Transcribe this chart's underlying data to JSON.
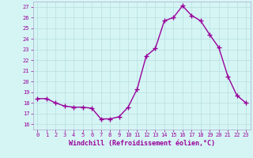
{
  "x": [
    0,
    1,
    2,
    3,
    4,
    5,
    6,
    7,
    8,
    9,
    10,
    11,
    12,
    13,
    14,
    15,
    16,
    17,
    18,
    19,
    20,
    21,
    22,
    23
  ],
  "y": [
    18.4,
    18.4,
    18.0,
    17.7,
    17.6,
    17.6,
    17.5,
    16.5,
    16.5,
    16.7,
    17.6,
    19.3,
    22.4,
    23.1,
    25.7,
    26.0,
    27.1,
    26.2,
    25.7,
    24.4,
    23.2,
    20.5,
    18.7,
    18.0
  ],
  "line_color": "#990099",
  "marker": "+",
  "markersize": 4,
  "linewidth": 1.0,
  "xlabel": "Windchill (Refroidissement éolien,°C)",
  "xlim": [
    -0.5,
    23.5
  ],
  "ylim": [
    15.5,
    27.5
  ],
  "yticks": [
    16,
    17,
    18,
    19,
    20,
    21,
    22,
    23,
    24,
    25,
    26,
    27
  ],
  "xticks": [
    0,
    1,
    2,
    3,
    4,
    5,
    6,
    7,
    8,
    9,
    10,
    11,
    12,
    13,
    14,
    15,
    16,
    17,
    18,
    19,
    20,
    21,
    22,
    23
  ],
  "bg_color": "#d5f5f5",
  "grid_color": "#b8dede",
  "tick_color": "#990099",
  "label_color": "#990099",
  "tick_fontsize": 5.0,
  "xlabel_fontsize": 6.0,
  "spine_color": "#aaaacc"
}
